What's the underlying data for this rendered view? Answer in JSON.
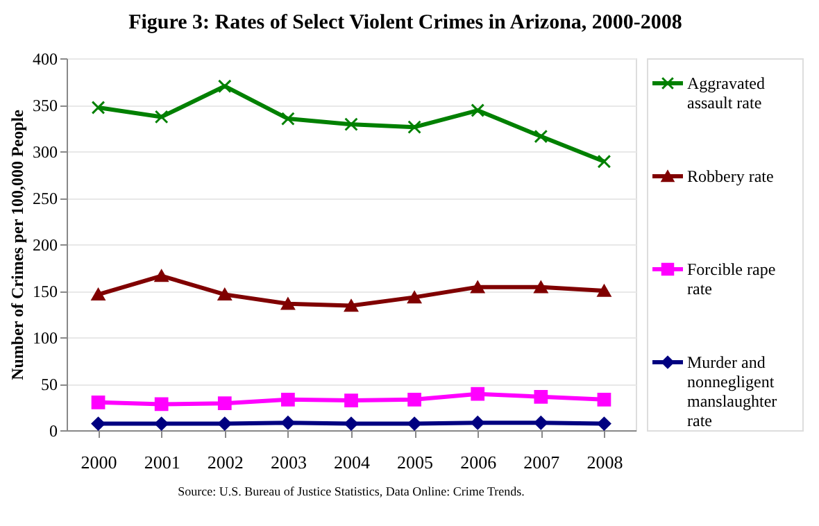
{
  "chart_data": {
    "type": "line",
    "title": "Figure 3: Rates of Select Violent Crimes in Arizona, 2000-2008",
    "ylabel": "Number of Crimes per 100,000 People",
    "categories": [
      "2000",
      "2001",
      "2002",
      "2003",
      "2004",
      "2005",
      "2006",
      "2007",
      "2008"
    ],
    "series": [
      {
        "name": "Aggravated assault rate",
        "color": "#008000",
        "marker": "cross",
        "values": [
          347,
          337,
          370,
          335,
          329,
          326,
          344,
          316,
          289
        ]
      },
      {
        "name": "Robbery rate",
        "color": "#800000",
        "marker": "triangle",
        "values": [
          146,
          166,
          146,
          136,
          134,
          143,
          154,
          154,
          150
        ]
      },
      {
        "name": "Forcible rape rate",
        "color": "#ff00ff",
        "marker": "square",
        "values": [
          30,
          28,
          29,
          33,
          32,
          33,
          39,
          36,
          33
        ]
      },
      {
        "name": "Murder and nonnegligent manslaughter rate",
        "color": "#000080",
        "marker": "diamond",
        "values": [
          7,
          7,
          7,
          8,
          7,
          7,
          8,
          8,
          7
        ]
      }
    ],
    "ylim": [
      0,
      400
    ],
    "yticks": [
      0,
      50,
      100,
      150,
      200,
      250,
      300,
      350,
      400
    ],
    "grid": "y",
    "legend": "right",
    "annotations": [
      "Source: U.S. Bureau of Justice Statistics, Data Online: Crime Trends."
    ]
  }
}
